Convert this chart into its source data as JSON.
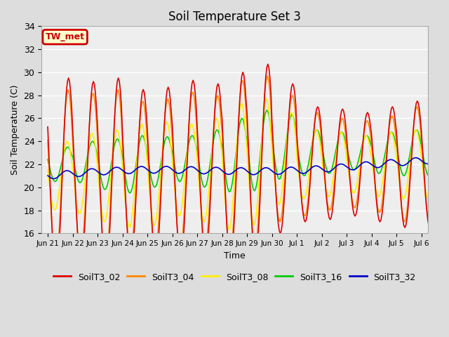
{
  "title": "Soil Temperature Set 3",
  "xlabel": "Time",
  "ylabel": "Soil Temperature (C)",
  "ylim": [
    16,
    34
  ],
  "yticks": [
    16,
    18,
    20,
    22,
    24,
    26,
    28,
    30,
    32,
    34
  ],
  "annotation_text": "TW_met",
  "annotation_box_facecolor": "#ffffcc",
  "annotation_box_edgecolor": "#cc0000",
  "annotation_text_color": "#cc0000",
  "series_colors": {
    "SoilT3_02": "#dd0000",
    "SoilT3_04": "#ff8800",
    "SoilT3_08": "#ffee00",
    "SoilT3_16": "#00cc00",
    "SoilT3_32": "#0000cc"
  },
  "bg_color": "#dddddd",
  "plot_bg_color": "#eeeeee",
  "grid_color": "#ffffff",
  "x_tick_labels": [
    "Jun 21",
    "Jun 22",
    "Jun 23",
    "Jun 24",
    "Jun 25",
    "Jun 26",
    "Jun 27",
    "Jun 28",
    "Jun 29",
    "Jun 30",
    "Jul 1",
    "Jul 2",
    "Jul 3",
    "Jul 4",
    "Jul 5",
    "Jul 6"
  ],
  "legend_labels": [
    "SoilT3_02",
    "SoilT3_04",
    "SoilT3_08",
    "SoilT3_16",
    "SoilT3_32"
  ],
  "n_days": 16,
  "mean_temps": [
    21.0,
    21.2,
    21.0,
    21.0,
    21.2,
    21.5,
    21.5,
    21.8,
    22.2,
    22.5,
    22.0,
    22.0,
    22.0,
    22.0,
    22.0,
    22.0
  ],
  "amplitudes_02": [
    8.5,
    8.0,
    8.5,
    7.5,
    7.5,
    7.8,
    7.5,
    8.2,
    8.5,
    6.5,
    5.0,
    4.8,
    4.5,
    5.0,
    5.5,
    5.5
  ],
  "amplitudes_04": [
    7.5,
    7.0,
    7.5,
    6.5,
    6.5,
    6.8,
    6.5,
    7.5,
    7.5,
    5.5,
    4.5,
    4.0,
    3.8,
    4.2,
    5.0,
    5.0
  ],
  "amplitudes_08": [
    3.0,
    3.5,
    4.0,
    4.5,
    4.5,
    4.0,
    4.5,
    5.5,
    5.5,
    4.0,
    3.0,
    2.8,
    2.5,
    2.8,
    3.0,
    3.0
  ],
  "amplitudes_16": [
    1.5,
    1.8,
    2.2,
    2.5,
    2.2,
    2.0,
    2.5,
    3.2,
    3.5,
    2.8,
    2.0,
    1.8,
    1.5,
    1.8,
    2.0,
    2.0
  ],
  "phase_peak_02": 14,
  "phase_peak_04": 14,
  "phase_peak_08": 14,
  "phase_peak_16": 15,
  "phase_peak_32": 16
}
